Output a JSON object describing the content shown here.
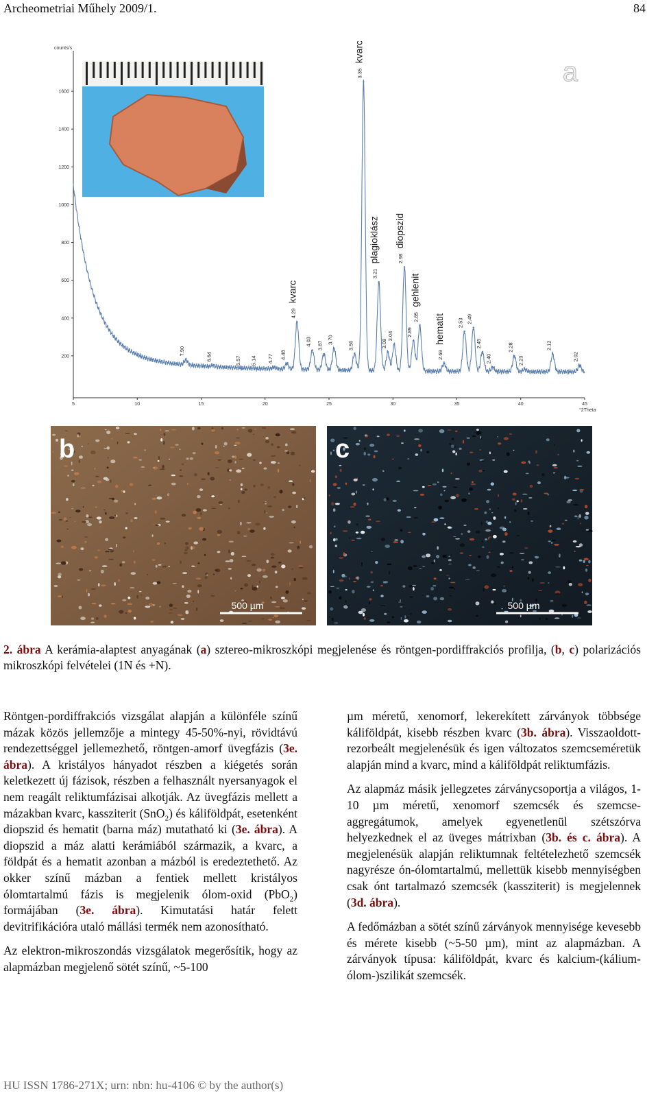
{
  "header": {
    "journal": "Archeometriai Műhely 2009/1.",
    "page": "84"
  },
  "figure": {
    "xrd": {
      "panel": "a",
      "y_label": "counts/s",
      "x_label": "°2Theta",
      "xlim": [
        5,
        45
      ],
      "ylim": [
        0,
        1800
      ],
      "xticks": [
        5,
        10,
        15,
        20,
        25,
        30,
        35,
        40,
        45
      ],
      "yticks": [
        200,
        400,
        600,
        800,
        1000,
        1200,
        1400,
        1600
      ],
      "line_color": "#5b7fb0",
      "peaks": [
        {
          "d": "7.90",
          "two_theta": 13.8,
          "counts": 180
        },
        {
          "d": "6.64",
          "two_theta": 15.9,
          "counts": 150
        },
        {
          "d": "5.57",
          "two_theta": 18.2,
          "counts": 130
        },
        {
          "d": "5.14",
          "two_theta": 19.4,
          "counts": 130
        },
        {
          "d": "4.77",
          "two_theta": 20.7,
          "counts": 140
        },
        {
          "d": "4.48",
          "two_theta": 21.7,
          "counts": 160
        },
        {
          "d": "4.29",
          "two_theta": 22.5,
          "counts": 380,
          "mineral": "kvarc"
        },
        {
          "d": "4.03",
          "two_theta": 23.7,
          "counts": 230
        },
        {
          "d": "3.87",
          "two_theta": 24.6,
          "counts": 210
        },
        {
          "d": "3.70",
          "two_theta": 25.4,
          "counts": 240
        },
        {
          "d": "3.50",
          "two_theta": 27.0,
          "counts": 210
        },
        {
          "d": "3.35",
          "two_theta": 27.7,
          "counts": 1650,
          "mineral": "kvarc"
        },
        {
          "d": "3.21",
          "two_theta": 28.9,
          "counts": 590,
          "mineral": "plagioklász"
        },
        {
          "d": "3.08",
          "two_theta": 29.6,
          "counts": 220
        },
        {
          "d": "3.04",
          "two_theta": 30.1,
          "counts": 260
        },
        {
          "d": "2.98",
          "two_theta": 30.9,
          "counts": 670,
          "mineral": "diopszid"
        },
        {
          "d": "2.89",
          "two_theta": 31.6,
          "counts": 280
        },
        {
          "d": "2.85",
          "two_theta": 32.1,
          "counts": 360,
          "mineral": "gehlenit"
        },
        {
          "d": "2.69",
          "two_theta": 34.0,
          "counts": 160,
          "mineral": "hematit"
        },
        {
          "d": "2.53",
          "two_theta": 35.6,
          "counts": 330
        },
        {
          "d": "2.49",
          "two_theta": 36.3,
          "counts": 350
        },
        {
          "d": "2.45",
          "two_theta": 37.0,
          "counts": 220
        },
        {
          "d": "2.40",
          "two_theta": 37.8,
          "counts": 140
        },
        {
          "d": "2.28",
          "two_theta": 39.5,
          "counts": 200
        },
        {
          "d": "2.23",
          "two_theta": 40.3,
          "counts": 130
        },
        {
          "d": "2.12",
          "two_theta": 42.5,
          "counts": 210
        },
        {
          "d": "2.02",
          "two_theta": 44.6,
          "counts": 150
        }
      ]
    },
    "photos": [
      {
        "panel": "b",
        "scale": "500 µm"
      },
      {
        "panel": "c",
        "scale": "500 µm"
      }
    ],
    "caption": [
      {
        "ref": "2. ábra"
      },
      " A kerámia-alaptest anyagának (",
      {
        "ref": "a"
      },
      ") sztereo-mikroszkópi megjelenése és röntgen-pordiffrakciós profilja, (",
      {
        "ref": "b"
      },
      ", ",
      {
        "ref": "c"
      },
      ") polarizációs mikroszkópi felvételei (1N és +N)."
    ]
  },
  "columns": [
    [
      [
        "Röntgen-pordiffrakciós vizsgálat alapján a különféle színű mázak közös jellemzője a mintegy 45-50%-nyi, rövidtávú rendezettséggel jellemezhető, röntgen-amorf üvegfázis (",
        {
          "ref": "3e. ábra"
        },
        "). A kristályos hányadot részben a kiégetés során keletkezett új fázisok, részben a felhasznált nyersanyagok el nem reagált reliktumfázisai alkotják. Az üvegfázis mellett a mázakban kvarc, kassziterit (SnO",
        {
          "sub": "2"
        },
        ") és káliföldpát, esetenként diopszid és hematit (barna máz) mutatható ki (",
        {
          "ref": "3e. ábra"
        },
        "). A diopszid a máz alatti kerámiából származik, a kvarc, a földpát és a hematit azonban a mázból is eredeztethető. Az okker színű mázban a fentiek mellett kristályos ólomtartalmú fázis is megjelenik ólom-oxid (PbO",
        {
          "sub": "2"
        },
        ") formájában (",
        {
          "ref": "3e. ábra"
        },
        "). Kimutatási határ felett devitrifikációra utaló mállási termék nem azonosítható."
      ],
      [
        "Az elektron-mikroszondás vizsgálatok megerősítik, hogy az alapmázban megjelenő sötét színű, ~5-100"
      ]
    ],
    [
      [
        "µm méretű, xenomorf, lekerekített zárványok többsége káliföldpát, kisebb részben kvarc (",
        {
          "ref": "3b. ábra"
        },
        "). Visszaoldott-rezorbeált megjelenésük és igen változatos szemcseméretük alapján mind a kvarc, mind a káliföldpát reliktumfázis."
      ],
      [
        "Az alapmáz másik jellegzetes zárványcsoportja a világos, 1-10 µm méretű, xenomorf szemcsék és szemcse-aggregátumok, amelyek egyenetlenül szétszórva helyezkednek el az üveges mátrixban (",
        {
          "ref": "3b. és c. ábra"
        },
        "). A megjelenésük alapján reliktumnak feltételezhető szemcsék nagyrésze ón-ólomtartalmú, mellettük kisebb mennyiségben csak ónt tartalmazó szemcsék (kassziterit) is megjelennek (",
        {
          "ref": "3d. ábra"
        },
        ")."
      ],
      [
        "A fedőmázban a sötét színű zárványok mennyisége kevesebb és mérete kisebb (~5-50 µm), mint az alapmázban. A zárványok típusa: káliföldpát, kvarc és kalcium-(kálium-ólom-)szilikát szemcsék."
      ]
    ]
  ],
  "footer": "HU ISSN 1786-271X; urn: nbn: hu-4106 © by the author(s)"
}
